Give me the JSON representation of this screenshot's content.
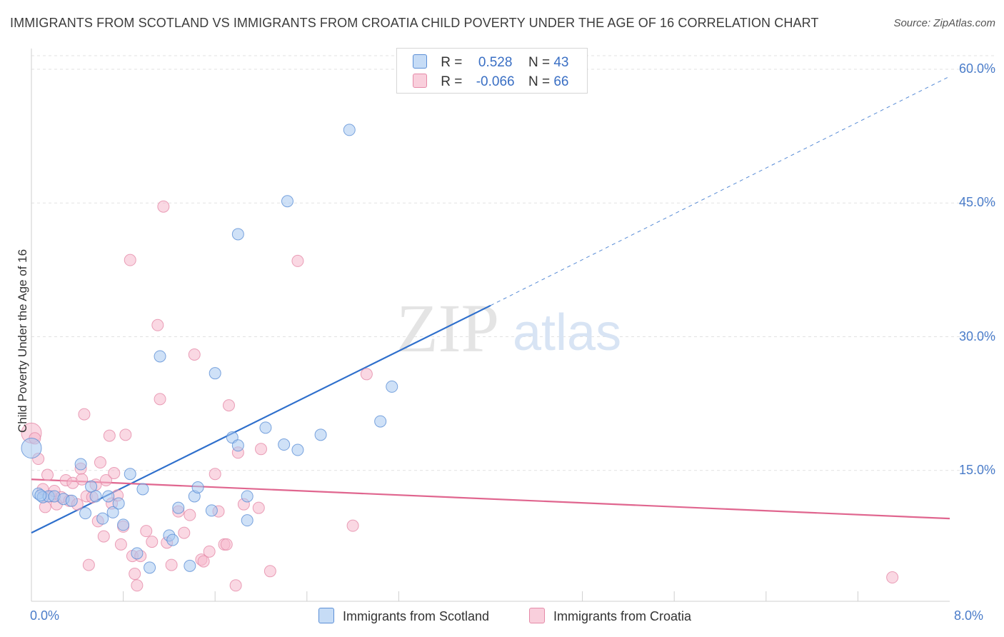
{
  "title": "IMMIGRANTS FROM SCOTLAND VS IMMIGRANTS FROM CROATIA CHILD POVERTY UNDER THE AGE OF 16 CORRELATION CHART",
  "source": "Source: ZipAtlas.com",
  "watermark": {
    "zip": "ZIP",
    "atlas": "atlas"
  },
  "legend_top": {
    "rows": [
      {
        "r_label": "R =",
        "r_value": "0.528",
        "n_label": "N =",
        "n_value": "43",
        "color": "#a8c8f0"
      },
      {
        "r_label": "R =",
        "r_value": "-0.066",
        "n_label": "N =",
        "n_value": "66",
        "color": "#f5b8cc"
      }
    ]
  },
  "legend_bottom": {
    "scotland": "Immigrants from Scotland",
    "croatia": "Immigrants from Croatia"
  },
  "colors": {
    "scotland_fill": "#a8c8f0",
    "scotland_stroke": "#5b8fd6",
    "scotland_line": "#2e6fcc",
    "croatia_fill": "#f5b8cc",
    "croatia_stroke": "#e58aa8",
    "croatia_line": "#e0668f",
    "tick_text": "#4a7cc9"
  },
  "chart_data": {
    "type": "scatter",
    "title": "IMMIGRANTS FROM SCOTLAND VS IMMIGRANTS FROM CROATIA CHILD POVERTY UNDER THE AGE OF 16 CORRELATION CHART",
    "xlabel": "",
    "ylabel": "Child Poverty Under the Age of 16",
    "xlim": [
      0,
      8
    ],
    "ylim": [
      0,
      60
    ],
    "x_ticks": [
      "0.0%",
      "8.0%"
    ],
    "y_ticks": [
      "15.0%",
      "30.0%",
      "45.0%",
      "60.0%"
    ],
    "y_tick_values": [
      15,
      30,
      45,
      60
    ],
    "grid": true,
    "legend_position": "top-center",
    "series": [
      {
        "name": "Immigrants from Scotland",
        "r": 0.528,
        "n": 43,
        "trend": {
          "x0": 0,
          "y0": 8.0,
          "x1": 4.0,
          "y1": 33.5,
          "dash_to_x": 8.0,
          "dash_to_y": 59.2
        },
        "points": [
          [
            0.0,
            17.5
          ],
          [
            0.06,
            12.4
          ],
          [
            0.1,
            12.0
          ],
          [
            0.15,
            12.1
          ],
          [
            0.2,
            12.1
          ],
          [
            0.28,
            11.8
          ],
          [
            0.35,
            11.6
          ],
          [
            0.43,
            15.7
          ],
          [
            0.47,
            10.2
          ],
          [
            0.52,
            13.2
          ],
          [
            0.56,
            12.1
          ],
          [
            0.62,
            9.6
          ],
          [
            0.67,
            12.1
          ],
          [
            0.71,
            10.3
          ],
          [
            0.76,
            11.3
          ],
          [
            0.8,
            8.9
          ],
          [
            0.86,
            14.6
          ],
          [
            0.92,
            5.7
          ],
          [
            0.97,
            12.9
          ],
          [
            1.03,
            4.1
          ],
          [
            1.12,
            27.8
          ],
          [
            1.2,
            7.7
          ],
          [
            1.23,
            7.2
          ],
          [
            1.28,
            10.8
          ],
          [
            1.38,
            4.3
          ],
          [
            1.42,
            12.1
          ],
          [
            1.45,
            13.1
          ],
          [
            1.57,
            10.5
          ],
          [
            1.6,
            25.9
          ],
          [
            1.75,
            18.7
          ],
          [
            1.8,
            17.8
          ],
          [
            1.8,
            41.5
          ],
          [
            1.88,
            12.1
          ],
          [
            1.88,
            9.4
          ],
          [
            2.04,
            19.8
          ],
          [
            2.2,
            17.9
          ],
          [
            2.23,
            45.2
          ],
          [
            2.32,
            17.3
          ],
          [
            2.52,
            19.0
          ],
          [
            2.77,
            53.2
          ],
          [
            3.04,
            20.5
          ],
          [
            3.14,
            24.4
          ],
          [
            0.08,
            12.2
          ]
        ]
      },
      {
        "name": "Immigrants from Croatia",
        "r": -0.066,
        "n": 66,
        "trend": {
          "x0": 0,
          "y0": 14.0,
          "x1": 8.0,
          "y1": 9.6
        },
        "points": [
          [
            0.0,
            19.2
          ],
          [
            0.03,
            18.6
          ],
          [
            0.06,
            16.3
          ],
          [
            0.1,
            12.9
          ],
          [
            0.12,
            10.9
          ],
          [
            0.14,
            14.5
          ],
          [
            0.17,
            12.1
          ],
          [
            0.2,
            12.7
          ],
          [
            0.22,
            11.2
          ],
          [
            0.26,
            12.0
          ],
          [
            0.3,
            13.9
          ],
          [
            0.33,
            11.6
          ],
          [
            0.36,
            13.6
          ],
          [
            0.4,
            11.2
          ],
          [
            0.43,
            15.2
          ],
          [
            0.46,
            21.3
          ],
          [
            0.48,
            12.1
          ],
          [
            0.5,
            4.4
          ],
          [
            0.53,
            12.0
          ],
          [
            0.56,
            13.4
          ],
          [
            0.58,
            9.3
          ],
          [
            0.6,
            15.9
          ],
          [
            0.63,
            7.6
          ],
          [
            0.65,
            13.9
          ],
          [
            0.68,
            18.9
          ],
          [
            0.7,
            11.3
          ],
          [
            0.72,
            14.7
          ],
          [
            0.75,
            12.2
          ],
          [
            0.78,
            6.7
          ],
          [
            0.8,
            8.7
          ],
          [
            0.82,
            19.0
          ],
          [
            0.86,
            38.6
          ],
          [
            0.88,
            5.4
          ],
          [
            0.9,
            3.4
          ],
          [
            0.92,
            2.1
          ],
          [
            0.95,
            5.4
          ],
          [
            1.0,
            8.2
          ],
          [
            1.05,
            7.0
          ],
          [
            1.1,
            31.3
          ],
          [
            1.12,
            23.0
          ],
          [
            1.15,
            44.6
          ],
          [
            1.18,
            6.9
          ],
          [
            1.22,
            4.4
          ],
          [
            1.28,
            10.4
          ],
          [
            1.33,
            8.0
          ],
          [
            1.38,
            10.0
          ],
          [
            1.42,
            28.0
          ],
          [
            1.48,
            5.0
          ],
          [
            1.5,
            4.8
          ],
          [
            1.55,
            5.9
          ],
          [
            1.6,
            14.6
          ],
          [
            1.63,
            10.4
          ],
          [
            1.68,
            6.7
          ],
          [
            1.7,
            6.7
          ],
          [
            1.72,
            22.3
          ],
          [
            1.78,
            2.1
          ],
          [
            1.8,
            17.0
          ],
          [
            1.85,
            11.2
          ],
          [
            1.98,
            10.8
          ],
          [
            2.0,
            17.4
          ],
          [
            2.08,
            3.7
          ],
          [
            2.32,
            38.5
          ],
          [
            2.8,
            8.8
          ],
          [
            2.92,
            25.8
          ],
          [
            7.5,
            3.0
          ],
          [
            0.44,
            14.0
          ]
        ]
      }
    ]
  }
}
